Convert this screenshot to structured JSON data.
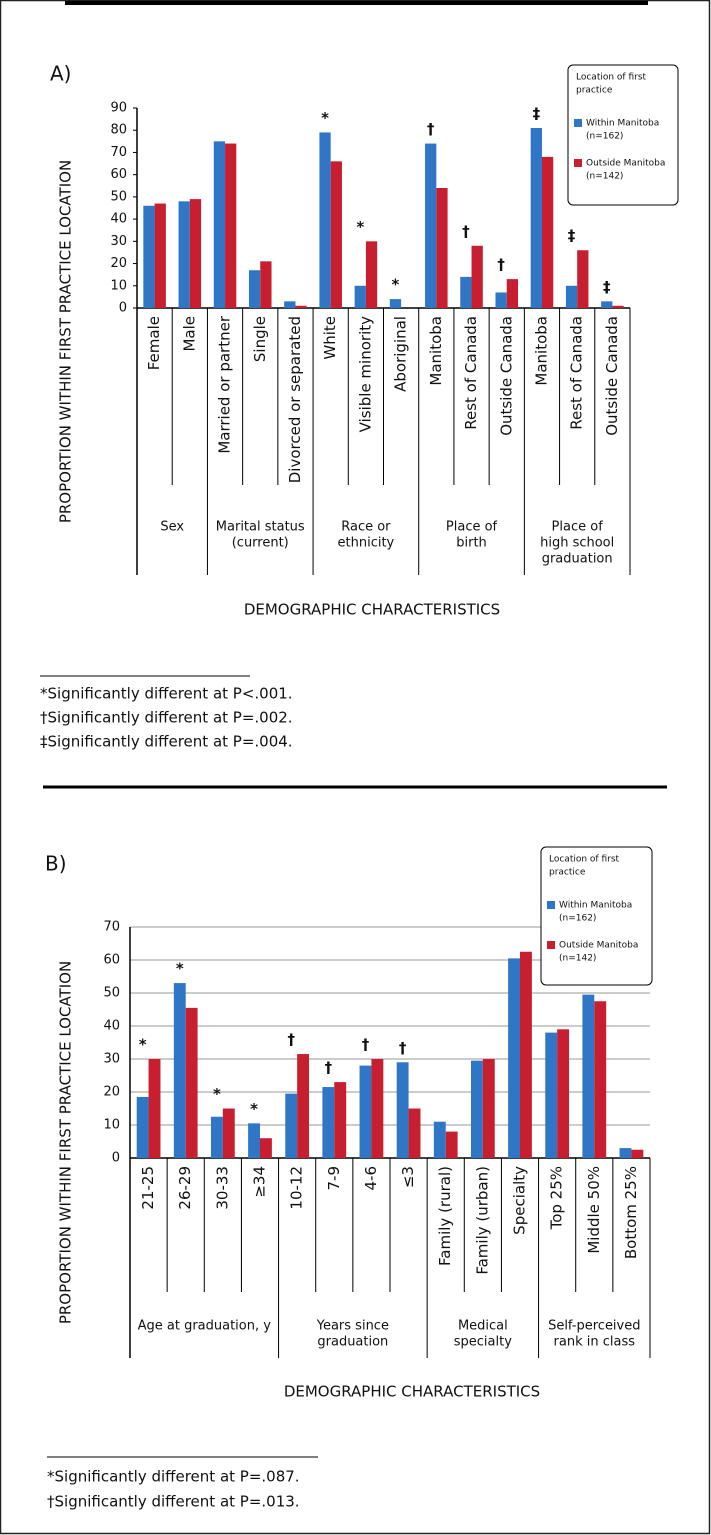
{
  "chart_data": [
    {
      "type": "bar",
      "panel_label": "A)",
      "ylabel": "PROPORTION WITHIN FIRST PRACTICE LOCATION",
      "xlabel": "DEMOGRAPHIC CHARACTERISTICS",
      "legend_title": [
        "Location of first",
        "practice"
      ],
      "groups": [
        {
          "label": [
            "Sex"
          ],
          "categories": [
            "Female",
            "Male"
          ]
        },
        {
          "label": [
            "Marital status",
            "(current)"
          ],
          "categories": [
            "Married or partner",
            "Single",
            "Divorced or separated"
          ]
        },
        {
          "label": [
            "Race or",
            "ethnicity"
          ],
          "categories": [
            "White",
            "Visible minority",
            "Aboriginal"
          ]
        },
        {
          "label": [
            "Place of",
            "birth"
          ],
          "categories": [
            "Manitoba",
            "Rest of Canada",
            "Outside Canada"
          ]
        },
        {
          "label": [
            "Place of",
            "high school",
            "graduation"
          ],
          "categories": [
            "Manitoba",
            "Rest of Canada",
            "Outside Canada"
          ]
        }
      ],
      "series": [
        {
          "name": "Within Manitoba",
          "n_label": "(n=162)",
          "color": "#2f76c6",
          "values": [
            46,
            48,
            75,
            17,
            3,
            79,
            10,
            4,
            74,
            14,
            7,
            81,
            10,
            3
          ]
        },
        {
          "name": "Outside Manitoba",
          "n_label": "(n=142)",
          "color": "#c81f30",
          "values": [
            47,
            49,
            74,
            21,
            1,
            66,
            30,
            0,
            54,
            28,
            13,
            68,
            26,
            1
          ]
        }
      ],
      "markers": [
        null,
        null,
        null,
        null,
        null,
        "*",
        "*",
        "*",
        "†",
        "†",
        "†",
        "‡",
        "‡",
        "‡"
      ],
      "ylim": [
        0,
        90
      ],
      "yticks": [
        0,
        10,
        20,
        30,
        40,
        50,
        60,
        70,
        80,
        90
      ],
      "grid": false,
      "footnotes": [
        "*Significantly different at P<.001.",
        "†Significantly different at P=.002.",
        "‡Significantly different at P=.004."
      ]
    },
    {
      "type": "bar",
      "panel_label": "B)",
      "ylabel": "PROPORTION WITHIN FIRST PRACTICE LOCATION",
      "xlabel": "DEMOGRAPHIC CHARACTERISTICS",
      "legend_title": [
        "Location of first",
        "practice"
      ],
      "groups": [
        {
          "label": [
            "Age at graduation, y"
          ],
          "categories": [
            "21-25",
            "26-29",
            "30-33",
            "≥34"
          ]
        },
        {
          "label": [
            "Years since",
            "graduation"
          ],
          "categories": [
            "10-12",
            "7-9",
            "4-6",
            "≤3"
          ]
        },
        {
          "label": [
            "Medical",
            "specialty"
          ],
          "categories": [
            "Family (rural)",
            "Family (urban)",
            "Specialty"
          ]
        },
        {
          "label": [
            "Self-perceived",
            "rank in class"
          ],
          "categories": [
            "Top 25%",
            "Middle 50%",
            "Bottom 25%"
          ]
        }
      ],
      "series": [
        {
          "name": "Within Manitoba",
          "n_label": "(n=162)",
          "color": "#2f76c6",
          "values": [
            18.5,
            53,
            12.5,
            10.5,
            19.5,
            21.5,
            28,
            29,
            11,
            29.5,
            60.5,
            38,
            49.5,
            3
          ]
        },
        {
          "name": "Outside Manitoba",
          "n_label": "(n=142)",
          "color": "#c81f30",
          "values": [
            30,
            45.5,
            15,
            6,
            31.5,
            23,
            30,
            15,
            8,
            30,
            62.5,
            39,
            47.5,
            2.5
          ]
        }
      ],
      "markers": [
        "*",
        "*",
        "*",
        "*",
        "†",
        "†",
        "†",
        "†",
        null,
        null,
        null,
        null,
        null,
        null
      ],
      "ylim": [
        0,
        70
      ],
      "yticks": [
        0,
        10,
        20,
        30,
        40,
        50,
        60,
        70
      ],
      "grid": true,
      "footnotes": [
        "*Significantly different at P=.087.",
        "†Significantly different at P=.013."
      ]
    }
  ]
}
